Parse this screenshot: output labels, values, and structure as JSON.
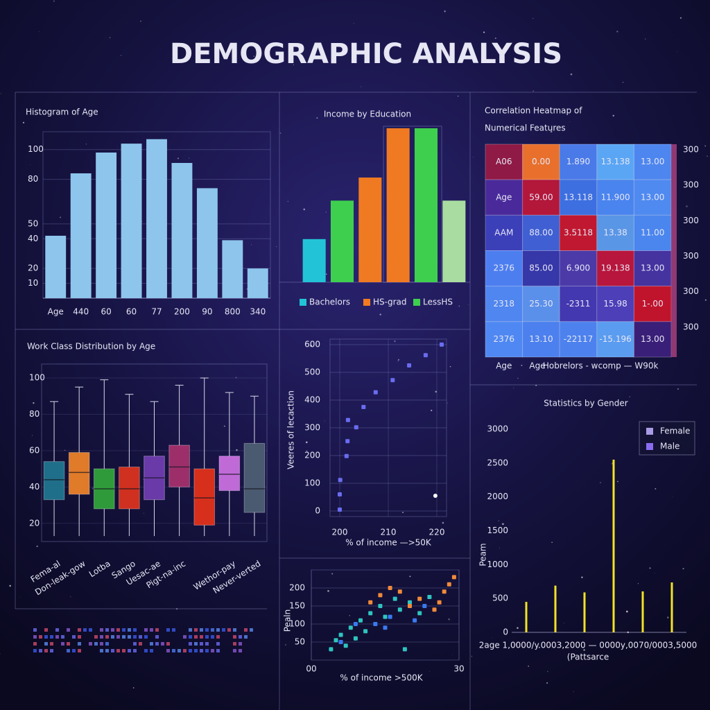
{
  "title": "DEMOGRAPHIC ANALYSIS",
  "chart_data": [
    {
      "type": "bar",
      "title": "Histogram of Age",
      "categories": [
        "Age",
        "440",
        "60",
        "60",
        "77",
        "200",
        "90",
        "800",
        "340"
      ],
      "values": [
        42,
        84,
        98,
        104,
        107,
        91,
        74,
        39,
        20
      ],
      "color": "#8ec5ec",
      "ylim": [
        0,
        112
      ],
      "yticks": [
        10,
        20,
        40,
        50,
        80,
        100
      ],
      "grid": true
    },
    {
      "type": "bar",
      "title": "Income by Education",
      "categories": [
        null,
        null,
        null,
        null,
        null,
        null
      ],
      "values": [
        28,
        53,
        68,
        100,
        100,
        53
      ],
      "colors": [
        "#22c3d6",
        "#3fcf4f",
        "#f07a22",
        "#f07a22",
        "#3fcf4f",
        "#a9dca0"
      ],
      "ylim": [
        0,
        100
      ],
      "legend": [
        {
          "name": "Bachelors",
          "color": "#22c3d6"
        },
        {
          "name": "HS-grad",
          "color": "#f07a22"
        },
        {
          "name": "LessHS",
          "color": "#3fcf4f"
        }
      ]
    },
    {
      "type": "heatmap",
      "title": [
        "Correlation Heatmap of",
        "Numerical Features"
      ],
      "rows": [
        [
          {
            "text": "A06",
            "color": "#8e1a45"
          },
          {
            "text": "0.00",
            "color": "#e8702c"
          },
          {
            "text": "1.890",
            "color": "#4a7ae8"
          },
          {
            "text": "13.138",
            "color": "#5aa6f4"
          },
          {
            "text": "13.00",
            "color": "#4d86ef"
          }
        ],
        [
          {
            "text": "Age",
            "color": "#4a2a9a"
          },
          {
            "text": "59.00",
            "color": "#b3173a"
          },
          {
            "text": "13.118",
            "color": "#3d6fe0"
          },
          {
            "text": "11.900",
            "color": "#4a84ee"
          },
          {
            "text": "13.00",
            "color": "#4f8af0"
          }
        ],
        [
          {
            "text": "AAM",
            "color": "#3b3fb8"
          },
          {
            "text": "88.00",
            "color": "#3f5fd2"
          },
          {
            "text": "3.5118",
            "color": "#c01830"
          },
          {
            "text": "13.38",
            "color": "#5a96e6"
          },
          {
            "text": "11.00",
            "color": "#4a86ee"
          }
        ],
        [
          {
            "text": "2376",
            "color": "#4c7ef0"
          },
          {
            "text": "85.00",
            "color": "#3637a8"
          },
          {
            "text": "6.900",
            "color": "#4b3aa8"
          },
          {
            "text": "19.138",
            "color": "#b8163c"
          },
          {
            "text": "13.00",
            "color": "#4533a0"
          }
        ],
        [
          {
            "text": "2318",
            "color": "#4f86f0"
          },
          {
            "text": "25.30",
            "color": "#5b90ea"
          },
          {
            "text": "-2311",
            "color": "#4438b0"
          },
          {
            "text": "15.98",
            "color": "#4c3fb8"
          },
          {
            "text": "1-.00",
            "color": "#c0142c"
          }
        ],
        [
          {
            "text": "2376",
            "color": "#4f88f2"
          },
          {
            "text": "13.10",
            "color": "#4c80ee"
          },
          {
            "text": "-22117",
            "color": "#4d82ee"
          },
          {
            "text": "-15.196",
            "color": "#5a9cf0"
          },
          {
            "text": "13.00",
            "color": "#3a1f78"
          }
        ]
      ],
      "column_labels": [
        "Age",
        "Age",
        "Hobrelors - wcomp — W90k"
      ],
      "right_labels": [
        300,
        300,
        300,
        300,
        300,
        300
      ]
    },
    {
      "type": "box",
      "title": "Work Class Distribution by Age",
      "categories": [
        "Fema-al",
        "Don-leak-gow",
        "Lotba",
        "Sango",
        "Uesac-ae",
        "Pigt-na-inc",
        null,
        "Wethor-pay",
        "Never-verted"
      ],
      "boxes": [
        {
          "low": 13,
          "q1": 33,
          "median": 44,
          "q3": 54,
          "high": 87,
          "color": "#1f6f8a"
        },
        {
          "low": 13,
          "q1": 36,
          "median": 48,
          "q3": 59,
          "high": 95,
          "color": "#e07b2a"
        },
        {
          "low": 13,
          "q1": 28,
          "median": 39,
          "q3": 50,
          "high": 99,
          "color": "#2f9a3a"
        },
        {
          "low": 13,
          "q1": 28,
          "median": 39,
          "q3": 51,
          "high": 91,
          "color": "#d0301f"
        },
        {
          "low": 13,
          "q1": 33,
          "median": 45,
          "q3": 57,
          "high": 87,
          "color": "#6a3aa8"
        },
        {
          "low": 13,
          "q1": 40,
          "median": 51,
          "q3": 63,
          "high": 96,
          "color": "#9c2f6a"
        },
        {
          "low": 13,
          "q1": 19,
          "median": 34,
          "q3": 50,
          "high": 100,
          "color": "#d6301c"
        },
        {
          "low": 13,
          "q1": 38,
          "median": 47,
          "q3": 57,
          "high": 92,
          "color": "#c06ad8"
        },
        {
          "low": 13,
          "q1": 26,
          "median": 39,
          "q3": 64,
          "high": 90,
          "color": "#4a5a70"
        }
      ],
      "ylim": [
        10,
        105
      ],
      "yticks": [
        20,
        40,
        60,
        80,
        100
      ]
    },
    {
      "type": "scatter",
      "xlabel": "% of income —>50K",
      "ylabel": "Veeres of lecaction",
      "series": [
        {
          "color": "#6a6cf0",
          "x": [
            200,
            200,
            200.1,
            201.4,
            201.6,
            201.7,
            203.4,
            204.9,
            207.4,
            210.9,
            214.3,
            217.7,
            221
          ],
          "values": [
            5,
            60,
            112,
            198,
            252,
            328,
            302,
            375,
            428,
            472,
            525,
            562,
            600
          ]
        },
        {
          "color": "#ffffff",
          "x": [
            219.7
          ],
          "values": [
            55
          ]
        }
      ],
      "xlim": [
        198,
        222
      ],
      "xticks": [
        200,
        210,
        220
      ],
      "ylim": [
        -20,
        620
      ],
      "yticks": [
        0,
        100,
        200,
        300,
        400,
        500,
        600
      ],
      "grid": true
    },
    {
      "type": "scatter",
      "xlabel": "% of income >500K",
      "ylabel": "Pealn",
      "series": [
        {
          "color": "#2fc4c0",
          "x": [
            4,
            5,
            6,
            7,
            8,
            9,
            10,
            11,
            12,
            14,
            15,
            17,
            18,
            20,
            22,
            24,
            19
          ],
          "values": [
            30,
            55,
            70,
            40,
            90,
            60,
            110,
            80,
            130,
            150,
            120,
            170,
            140,
            160,
            130,
            175,
            30
          ]
        },
        {
          "color": "#f08a3a",
          "x": [
            12,
            14,
            16,
            18,
            20,
            22,
            26,
            27,
            28,
            29,
            25
          ],
          "values": [
            160,
            180,
            200,
            190,
            150,
            170,
            160,
            190,
            210,
            230,
            140
          ]
        },
        {
          "color": "#3a7af0",
          "x": [
            6,
            9,
            13,
            16,
            21,
            23,
            15
          ],
          "values": [
            50,
            100,
            100,
            120,
            110,
            150,
            90
          ]
        }
      ],
      "xlim": [
        0,
        30
      ],
      "xticks": [
        {
          "value": 0,
          "label": "00"
        },
        30
      ],
      "ylim": [
        0,
        250
      ],
      "yticks": [
        50,
        100,
        150,
        200
      ],
      "grid": true
    },
    {
      "type": "bar",
      "title": "Statistics by Gender",
      "categories": [
        null,
        null,
        null,
        null,
        null,
        null
      ],
      "values": [
        450,
        690,
        590,
        2550,
        605,
        737
      ],
      "color": "#f2e227",
      "ylim": [
        0,
        3000
      ],
      "yticks": [
        0,
        500,
        1000,
        1500,
        2000,
        2500,
        3000
      ],
      "xaxis_text": "2age 1,0000/y.0003,2000 — 0000y,0070/0003,5000",
      "xlabel": "(Pattsarce",
      "ylabel": "Peam",
      "legend": [
        {
          "name": "Female",
          "color": "#a99be6"
        },
        {
          "name": "Male",
          "color": "#8b6cf0"
        }
      ]
    }
  ]
}
